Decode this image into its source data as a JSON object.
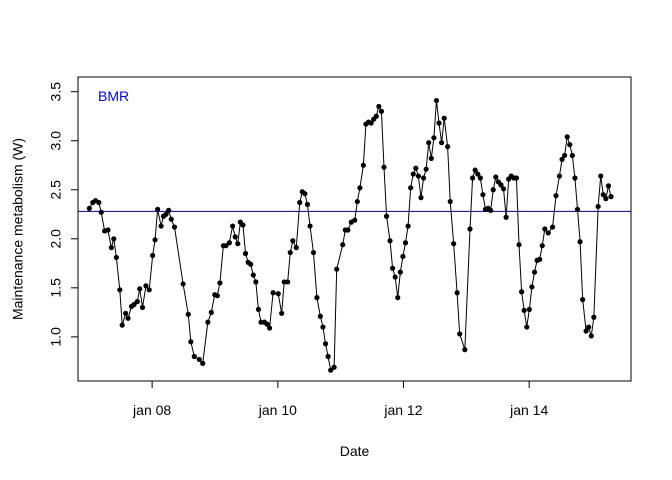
{
  "chart_data": {
    "type": "line",
    "title": "",
    "xlabel": "Date",
    "ylabel": "Maintenance metabolism (W)",
    "x_ticks": [
      {
        "label": "jan 08",
        "value": "2008-01-01"
      },
      {
        "label": "jan 10",
        "value": "2010-01-01"
      },
      {
        "label": "jan 12",
        "value": "2012-01-01"
      },
      {
        "label": "jan 14",
        "value": "2014-01-01"
      }
    ],
    "y_ticks": [
      {
        "label": "1.0",
        "value": 1.0
      },
      {
        "label": "1.5",
        "value": 1.5
      },
      {
        "label": "2.0",
        "value": 2.0
      },
      {
        "label": "2.5",
        "value": 2.5
      },
      {
        "label": "3.0",
        "value": 3.0
      },
      {
        "label": "3.5",
        "value": 3.5
      }
    ],
    "xlim": [
      "2006-10-27",
      "2015-08-16"
    ],
    "ylim": [
      0.55,
      3.65
    ],
    "grid": false,
    "series": [
      {
        "color": "#000000",
        "marker": "filled-circle",
        "points": [
          [
            "2007-01-01",
            2.31
          ],
          [
            "2007-01-21",
            2.37
          ],
          [
            "2007-02-06",
            2.39
          ],
          [
            "2007-02-25",
            2.37
          ],
          [
            "2007-03-11",
            2.27
          ],
          [
            "2007-03-31",
            2.08
          ],
          [
            "2007-04-19",
            2.09
          ],
          [
            "2007-05-09",
            1.91
          ],
          [
            "2007-05-23",
            2.0
          ],
          [
            "2007-06-07",
            1.81
          ],
          [
            "2007-06-27",
            1.48
          ],
          [
            "2007-07-11",
            1.12
          ],
          [
            "2007-07-31",
            1.24
          ],
          [
            "2007-08-14",
            1.19
          ],
          [
            "2007-09-03",
            1.31
          ],
          [
            "2007-09-18",
            1.33
          ],
          [
            "2007-10-07",
            1.36
          ],
          [
            "2007-10-21",
            1.49
          ],
          [
            "2007-11-06",
            1.3
          ],
          [
            "2007-11-26",
            1.52
          ],
          [
            "2007-12-15",
            1.48
          ],
          [
            "2008-01-04",
            1.83
          ],
          [
            "2008-01-18",
            1.99
          ],
          [
            "2008-02-02",
            2.3
          ],
          [
            "2008-02-22",
            2.13
          ],
          [
            "2008-03-07",
            2.23
          ],
          [
            "2008-03-22",
            2.25
          ],
          [
            "2008-04-06",
            2.29
          ],
          [
            "2008-04-21",
            2.2
          ],
          [
            "2008-05-10",
            2.12
          ],
          [
            "2008-06-29",
            1.54
          ],
          [
            "2008-07-29",
            1.23
          ],
          [
            "2008-08-13",
            0.95
          ],
          [
            "2008-09-02",
            0.8
          ],
          [
            "2008-10-01",
            0.77
          ],
          [
            "2008-10-21",
            0.73
          ],
          [
            "2008-11-20",
            1.15
          ],
          [
            "2008-12-10",
            1.25
          ],
          [
            "2008-12-30",
            1.43
          ],
          [
            "2009-01-14",
            1.42
          ],
          [
            "2009-01-29",
            1.55
          ],
          [
            "2009-02-18",
            1.93
          ],
          [
            "2009-03-05",
            1.93
          ],
          [
            "2009-03-25",
            1.96
          ],
          [
            "2009-04-13",
            2.13
          ],
          [
            "2009-04-28",
            2.02
          ],
          [
            "2009-05-13",
            1.95
          ],
          [
            "2009-05-28",
            2.17
          ],
          [
            "2009-06-12",
            2.14
          ],
          [
            "2009-06-27",
            1.85
          ],
          [
            "2009-07-12",
            1.76
          ],
          [
            "2009-07-27",
            1.74
          ],
          [
            "2009-08-11",
            1.63
          ],
          [
            "2009-08-26",
            1.56
          ],
          [
            "2009-09-10",
            1.28
          ],
          [
            "2009-09-25",
            1.15
          ],
          [
            "2009-10-15",
            1.15
          ],
          [
            "2009-10-30",
            1.13
          ],
          [
            "2009-11-14",
            1.09
          ],
          [
            "2009-12-04",
            1.45
          ],
          [
            "2010-01-03",
            1.44
          ],
          [
            "2010-01-23",
            1.24
          ],
          [
            "2010-02-07",
            1.56
          ],
          [
            "2010-02-27",
            1.56
          ],
          [
            "2010-03-14",
            1.86
          ],
          [
            "2010-03-29",
            1.98
          ],
          [
            "2010-04-18",
            1.91
          ],
          [
            "2010-05-08",
            2.37
          ],
          [
            "2010-05-23",
            2.48
          ],
          [
            "2010-06-07",
            2.46
          ],
          [
            "2010-06-22",
            2.35
          ],
          [
            "2010-07-07",
            2.13
          ],
          [
            "2010-07-27",
            1.86
          ],
          [
            "2010-08-16",
            1.4
          ],
          [
            "2010-09-05",
            1.21
          ],
          [
            "2010-09-20",
            1.1
          ],
          [
            "2010-10-05",
            0.93
          ],
          [
            "2010-10-20",
            0.8
          ],
          [
            "2010-11-04",
            0.66
          ],
          [
            "2010-11-24",
            0.69
          ],
          [
            "2010-12-09",
            1.69
          ],
          [
            "2011-01-13",
            1.94
          ],
          [
            "2011-01-28",
            2.09
          ],
          [
            "2011-02-12",
            2.09
          ],
          [
            "2011-03-04",
            2.17
          ],
          [
            "2011-03-24",
            2.19
          ],
          [
            "2011-04-08",
            2.38
          ],
          [
            "2011-04-23",
            2.52
          ],
          [
            "2011-05-13",
            2.75
          ],
          [
            "2011-05-28",
            3.17
          ],
          [
            "2011-06-12",
            3.19
          ],
          [
            "2011-06-27",
            3.18
          ],
          [
            "2011-07-12",
            3.22
          ],
          [
            "2011-07-27",
            3.25
          ],
          [
            "2011-08-11",
            3.35
          ],
          [
            "2011-08-26",
            3.3
          ],
          [
            "2011-09-10",
            2.73
          ],
          [
            "2011-09-25",
            2.23
          ],
          [
            "2011-10-15",
            1.98
          ],
          [
            "2011-10-30",
            1.7
          ],
          [
            "2011-11-14",
            1.61
          ],
          [
            "2011-11-29",
            1.4
          ],
          [
            "2011-12-14",
            1.66
          ],
          [
            "2011-12-29",
            1.82
          ],
          [
            "2012-01-13",
            1.96
          ],
          [
            "2012-01-28",
            2.13
          ],
          [
            "2012-02-12",
            2.52
          ],
          [
            "2012-02-27",
            2.66
          ],
          [
            "2012-03-13",
            2.72
          ],
          [
            "2012-03-28",
            2.64
          ],
          [
            "2012-04-12",
            2.42
          ],
          [
            "2012-04-27",
            2.62
          ],
          [
            "2012-05-12",
            2.71
          ],
          [
            "2012-05-27",
            2.98
          ],
          [
            "2012-06-11",
            2.82
          ],
          [
            "2012-06-26",
            3.03
          ],
          [
            "2012-07-11",
            3.41
          ],
          [
            "2012-07-26",
            3.18
          ],
          [
            "2012-08-10",
            2.98
          ],
          [
            "2012-08-25",
            3.23
          ],
          [
            "2012-09-14",
            2.94
          ],
          [
            "2012-09-29",
            2.38
          ],
          [
            "2012-10-19",
            1.95
          ],
          [
            "2012-11-08",
            1.45
          ],
          [
            "2012-11-23",
            1.03
          ],
          [
            "2012-12-23",
            0.87
          ],
          [
            "2013-01-22",
            2.1
          ],
          [
            "2013-02-06",
            2.62
          ],
          [
            "2013-02-21",
            2.7
          ],
          [
            "2013-03-08",
            2.66
          ],
          [
            "2013-03-23",
            2.62
          ],
          [
            "2013-04-07",
            2.45
          ],
          [
            "2013-04-22",
            2.3
          ],
          [
            "2013-05-07",
            2.31
          ],
          [
            "2013-05-22",
            2.29
          ],
          [
            "2013-06-06",
            2.5
          ],
          [
            "2013-06-21",
            2.63
          ],
          [
            "2013-07-06",
            2.58
          ],
          [
            "2013-07-21",
            2.55
          ],
          [
            "2013-08-05",
            2.51
          ],
          [
            "2013-08-20",
            2.22
          ],
          [
            "2013-09-04",
            2.61
          ],
          [
            "2013-09-19",
            2.64
          ],
          [
            "2013-10-04",
            2.62
          ],
          [
            "2013-10-19",
            2.62
          ],
          [
            "2013-11-03",
            1.94
          ],
          [
            "2013-11-18",
            1.46
          ],
          [
            "2013-12-03",
            1.27
          ],
          [
            "2013-12-18",
            1.1
          ],
          [
            "2014-01-02",
            1.28
          ],
          [
            "2014-01-17",
            1.51
          ],
          [
            "2014-02-01",
            1.66
          ],
          [
            "2014-02-16",
            1.78
          ],
          [
            "2014-03-03",
            1.79
          ],
          [
            "2014-03-18",
            1.93
          ],
          [
            "2014-04-02",
            2.1
          ],
          [
            "2014-04-22",
            2.06
          ],
          [
            "2014-05-17",
            2.12
          ],
          [
            "2014-06-06",
            2.44
          ],
          [
            "2014-06-26",
            2.64
          ],
          [
            "2014-07-11",
            2.81
          ],
          [
            "2014-07-26",
            2.85
          ],
          [
            "2014-08-10",
            3.04
          ],
          [
            "2014-08-25",
            2.96
          ],
          [
            "2014-09-09",
            2.85
          ],
          [
            "2014-09-24",
            2.62
          ],
          [
            "2014-10-09",
            2.3
          ],
          [
            "2014-10-24",
            1.97
          ],
          [
            "2014-11-08",
            1.38
          ],
          [
            "2014-11-28",
            1.06
          ],
          [
            "2014-12-13",
            1.1
          ],
          [
            "2014-12-28",
            1.01
          ],
          [
            "2015-01-12",
            1.2
          ],
          [
            "2015-02-06",
            2.33
          ],
          [
            "2015-02-21",
            2.64
          ],
          [
            "2015-03-08",
            2.45
          ],
          [
            "2015-03-23",
            2.41
          ],
          [
            "2015-04-07",
            2.54
          ],
          [
            "2015-04-22",
            2.43
          ]
        ]
      }
    ],
    "reference_line": {
      "value": 2.28,
      "color": "#00008b",
      "orientation": "horizontal"
    },
    "annotation": {
      "text": "BMR",
      "color": "#0000ff",
      "placement": "top-left"
    }
  }
}
